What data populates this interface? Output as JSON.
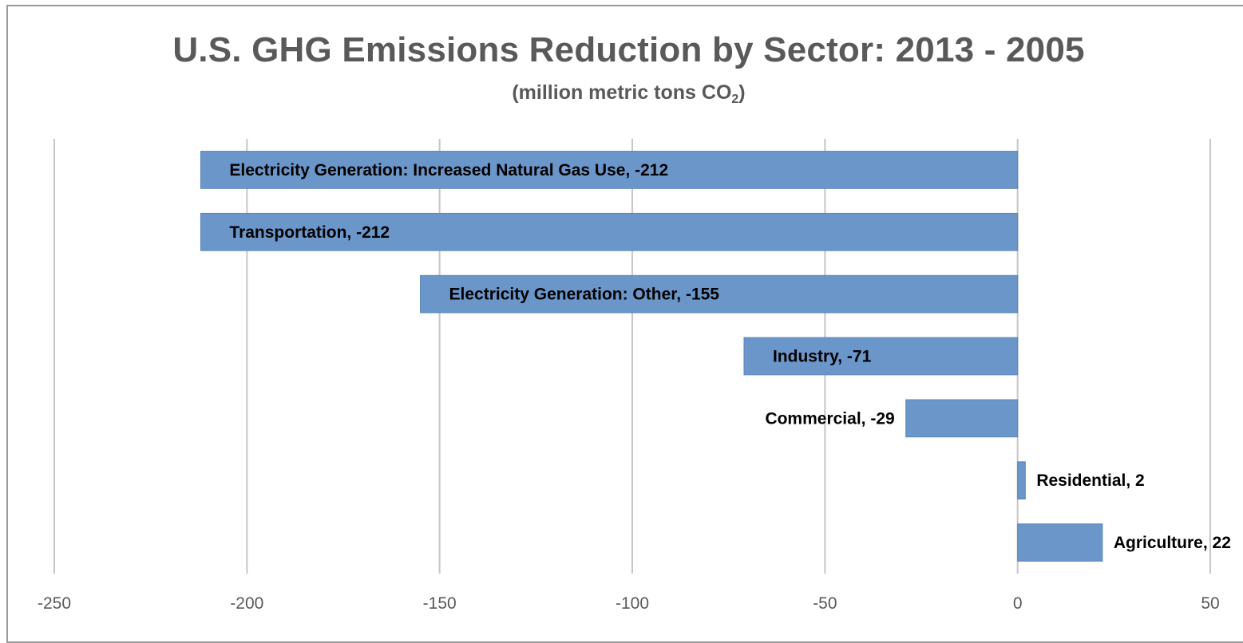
{
  "chart_data": {
    "type": "bar",
    "orientation": "horizontal",
    "title": "U.S. GHG Emissions Reduction by Sector: 2013 - 2005",
    "subtitle_main": "(million metric tons CO",
    "subtitle_sub": "2",
    "subtitle_end": ")",
    "categories": [
      "Electricity Generation: Increased Natural Gas Use",
      "Transportation",
      "Electricity Generation: Other",
      "Industry",
      "Commercial",
      "Residential",
      "Agriculture"
    ],
    "values": [
      -212,
      -212,
      -155,
      -71,
      -29,
      2,
      22
    ],
    "data_labels": [
      "Electricity Generation: Increased Natural Gas Use, -212",
      "Transportation, -212",
      "Electricity Generation: Other, -155",
      "Industry, -71",
      "Commercial, -29",
      "Residential, 2",
      "Agriculture, 22"
    ],
    "xlim": [
      -250,
      50
    ],
    "x_ticks": [
      -250,
      -200,
      -150,
      -100,
      -50,
      0,
      50
    ],
    "x_tick_labels": [
      "-250",
      "-200",
      "-150",
      "-100",
      "-50",
      "0",
      "50"
    ],
    "grid": "vertical",
    "legend": "none",
    "bar_color": "#6a96c9",
    "bar_border_color": "#5a86bb",
    "gridline_color": "#c6c6c6",
    "axis_color": "#7f7f7f",
    "title_color": "#595959"
  }
}
